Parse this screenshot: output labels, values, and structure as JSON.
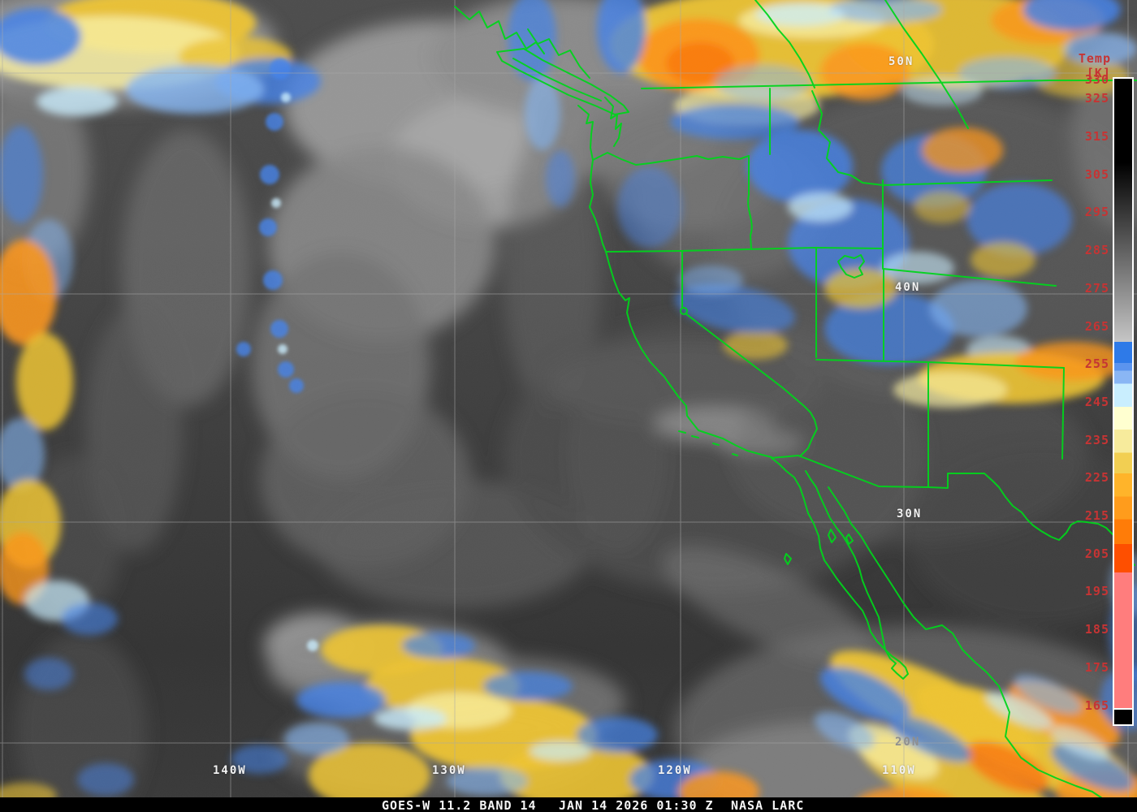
{
  "caption": {
    "product": "GOES-W 11.2 BAND 14",
    "datetime": "JAN 14 2026 01:30 Z",
    "credit": "NASA LARC"
  },
  "colorbar": {
    "title": "Temp [K]",
    "ticks": [
      "330",
      "325",
      "315",
      "305",
      "295",
      "285",
      "275",
      "265",
      "255",
      "245",
      "235",
      "225",
      "215",
      "205",
      "195",
      "185",
      "175",
      "165"
    ],
    "segments": [
      {
        "from_k": 330,
        "to_k": 308,
        "color": "#000000"
      },
      {
        "from_k": 308,
        "to_k": 261,
        "color": "#000000",
        "color_end": "#c6c6c6"
      },
      {
        "from_k": 261,
        "to_k": 255.5,
        "color": "#2e7ae8"
      },
      {
        "from_k": 255.5,
        "to_k": 253.5,
        "color": "#5b94ee"
      },
      {
        "from_k": 253.5,
        "to_k": 250,
        "color": "#8ab6f4"
      },
      {
        "from_k": 250,
        "to_k": 244,
        "color": "#c9eefe"
      },
      {
        "from_k": 244,
        "to_k": 238,
        "color": "#ffffd0"
      },
      {
        "from_k": 238,
        "to_k": 232,
        "color": "#f7eb9c"
      },
      {
        "from_k": 232,
        "to_k": 226.5,
        "color": "#f2cf52"
      },
      {
        "from_k": 226.5,
        "to_k": 220.5,
        "color": "#ffb42a"
      },
      {
        "from_k": 220.5,
        "to_k": 214.5,
        "color": "#ff9c1c"
      },
      {
        "from_k": 214.5,
        "to_k": 208,
        "color": "#ff7c08"
      },
      {
        "from_k": 208,
        "to_k": 200.5,
        "color": "#fe4f00"
      },
      {
        "from_k": 200.5,
        "to_k": 165,
        "color": "#ff7d7d"
      }
    ]
  },
  "grid": {
    "lat_labels": [
      "50N",
      "40N",
      "30N",
      "20N"
    ],
    "lon_labels": [
      "140W",
      "130W",
      "120W",
      "110W"
    ]
  },
  "colors": {
    "boundary_green": "#00d41c",
    "grid_line": "#a8a8a8",
    "map_label": "#f2f2f2",
    "temp_label": "#c63434",
    "caption_bg": "#000000",
    "caption_text": "#f5f5f5",
    "enh_blue": "#4583ea",
    "enh_light_blue": "#84b5f4",
    "enh_cyan": "#c9ecfd",
    "enh_cream": "#f7eda0",
    "enh_gold": "#eec431",
    "enh_orange": "#fb961c",
    "enh_dark_orange": "#f97a10",
    "enh_salmon": "#ff7d7d"
  }
}
